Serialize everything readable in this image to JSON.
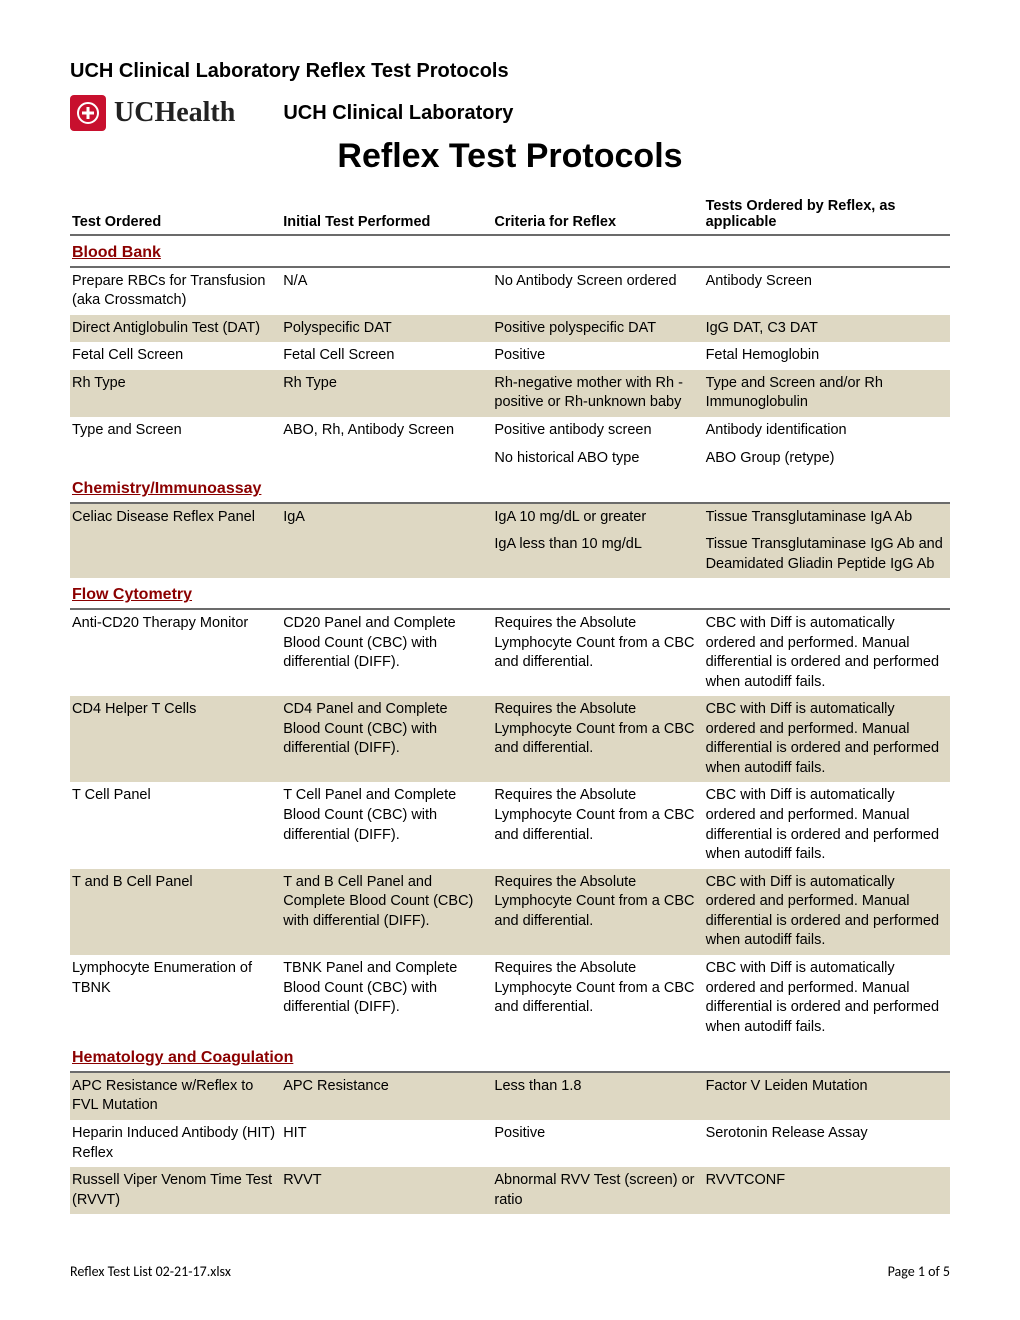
{
  "doc_header": "UCH Clinical Laboratory Reflex Test Protocols",
  "brand_name": "UCHealth",
  "lab_title": "UCH Clinical Laboratory",
  "main_title": "Reflex Test Protocols",
  "columns": {
    "c1": "Test Ordered",
    "c2": "Initial Test Performed",
    "c3": "Criteria for Reflex",
    "c4": "Tests Ordered by Reflex, as applicable"
  },
  "sections": [
    {
      "title": "Blood Bank",
      "rows": [
        {
          "shaded": false,
          "c1": "Prepare RBCs for Transfusion (aka Crossmatch)",
          "c2": "N/A",
          "c3": "No Antibody Screen ordered",
          "c4": "Antibody Screen"
        },
        {
          "shaded": true,
          "c1": "Direct Antiglobulin Test (DAT)",
          "c2": "Polyspecific DAT",
          "c3": "Positive polyspecific DAT",
          "c4": "IgG DAT, C3 DAT"
        },
        {
          "shaded": false,
          "c1": "Fetal Cell Screen",
          "c2": "Fetal Cell Screen",
          "c3": "Positive",
          "c4": "Fetal Hemoglobin"
        },
        {
          "shaded": true,
          "c1": "Rh Type",
          "c2": "Rh Type",
          "c3": "Rh-negative mother with Rh - positive or Rh-unknown baby",
          "c4": "Type and Screen and/or Rh Immunoglobulin"
        },
        {
          "shaded": false,
          "c1": "Type and Screen",
          "c2": "ABO, Rh, Antibody Screen",
          "c3": "Positive antibody screen",
          "c4": "Antibody identification"
        },
        {
          "shaded": false,
          "c1": "",
          "c2": "",
          "c3": "No historical ABO type",
          "c4": "ABO Group (retype)"
        }
      ]
    },
    {
      "title": "Chemistry/Immunoassay",
      "rows": [
        {
          "shaded": true,
          "c1": "Celiac Disease Reflex Panel",
          "c2": "IgA",
          "c3": "IgA 10 mg/dL or greater",
          "c4": "Tissue Transglutaminase IgA Ab"
        },
        {
          "shaded": true,
          "c1": "",
          "c2": "",
          "c3": "IgA less than 10 mg/dL",
          "c4": "Tissue Transglutaminase IgG Ab and Deamidated Gliadin Peptide IgG Ab"
        }
      ]
    },
    {
      "title": "Flow Cytometry",
      "rows": [
        {
          "shaded": false,
          "c1": "Anti-CD20 Therapy Monitor",
          "c2": "CD20 Panel and Complete Blood Count (CBC) with differential (DIFF).",
          "c3": "Requires the Absolute Lymphocyte Count from a CBC and differential.",
          "c4": "CBC with Diff is automatically ordered and performed. Manual differential is ordered and performed when autodiff fails."
        },
        {
          "shaded": true,
          "c1": "CD4 Helper T Cells",
          "c2": "CD4 Panel and Complete Blood Count (CBC) with differential (DIFF).",
          "c3": "Requires the Absolute Lymphocyte Count from a CBC and differential.",
          "c4": "CBC with Diff is automatically ordered and performed. Manual differential is ordered and performed when autodiff fails."
        },
        {
          "shaded": false,
          "c1": "T Cell Panel",
          "c2": "T Cell Panel and Complete Blood Count (CBC) with differential (DIFF).",
          "c3": "Requires the Absolute Lymphocyte Count from a CBC and differential.",
          "c4": "CBC with Diff is automatically ordered and performed. Manual differential is ordered and performed when autodiff fails."
        },
        {
          "shaded": true,
          "c1": "T and B Cell Panel",
          "c2": "T and B Cell Panel and Complete Blood Count (CBC) with differential (DIFF).",
          "c3": "Requires the Absolute Lymphocyte Count from a CBC and differential.",
          "c4": "CBC with Diff is automatically ordered and performed. Manual differential is ordered and performed when autodiff fails."
        },
        {
          "shaded": false,
          "c1": "Lymphocyte Enumeration of TBNK",
          "c2": "TBNK Panel and Complete Blood Count (CBC) with differential (DIFF).",
          "c3": "Requires the Absolute Lymphocyte Count from a CBC and differential.",
          "c4": "CBC with Diff is automatically ordered and performed. Manual differential is ordered and performed when autodiff fails."
        }
      ]
    },
    {
      "title": "Hematology and Coagulation",
      "rows": [
        {
          "shaded": true,
          "c1": "APC Resistance w/Reflex to FVL Mutation",
          "c2": "APC Resistance",
          "c3": "Less than 1.8",
          "c4": "Factor V Leiden Mutation"
        },
        {
          "shaded": false,
          "c1": "Heparin Induced Antibody (HIT) Reflex",
          "c2": "HIT",
          "c3": "Positive",
          "c4": "Serotonin Release Assay"
        },
        {
          "shaded": true,
          "c1": "Russell Viper Venom Time Test (RVVT)",
          "c2": "RVVT",
          "c3": "Abnormal RVV Test (screen) or ratio",
          "c4": "RVVTCONF"
        }
      ]
    }
  ],
  "footer": {
    "filename": "Reflex Test List 02-21-17.xlsx",
    "page": "Page 1 of 5"
  },
  "colors": {
    "section_text": "#8b0000",
    "shaded_bg": "#ded8c3",
    "rule": "#6b6b6b",
    "logo_bg": "#c8102e"
  }
}
